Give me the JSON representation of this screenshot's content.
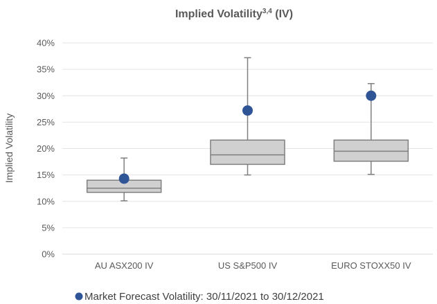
{
  "chart_data": {
    "type": "boxplot",
    "title": "Implied Volatility",
    "title_superscript": "3,4",
    "title_suffix": " (IV)",
    "ylabel": "Implied Volatility",
    "xlabel": "",
    "ylim": [
      0,
      40
    ],
    "y_ticks": [
      0,
      5,
      10,
      15,
      20,
      25,
      30,
      35,
      40
    ],
    "y_tick_labels": [
      "0%",
      "5%",
      "10%",
      "15%",
      "20%",
      "25%",
      "30%",
      "35%",
      "40%"
    ],
    "grid": true,
    "legend_position": "bottom",
    "categories": [
      "AU ASX200 IV",
      "US S&P500 IV",
      "EURO STOXX50 IV"
    ],
    "boxes": [
      {
        "min": 10.1,
        "q1": 11.7,
        "median": 12.5,
        "q3": 14.0,
        "max": 18.2
      },
      {
        "min": 15.0,
        "q1": 17.0,
        "median": 18.8,
        "q3": 21.6,
        "max": 37.2
      },
      {
        "min": 15.1,
        "q1": 17.6,
        "median": 19.5,
        "q3": 21.6,
        "max": 32.3
      }
    ],
    "series": [
      {
        "name": "Market Forecast Volatility: 30/11/2021 to 30/12/2021",
        "type": "scatter",
        "values": [
          14.3,
          27.2,
          30.0
        ]
      }
    ],
    "colors": {
      "box_fill": "#d0d0d0",
      "box_stroke": "#7f7f7f",
      "marker": "#2f5597",
      "grid": "#e4e4e4",
      "text": "#595959"
    }
  }
}
